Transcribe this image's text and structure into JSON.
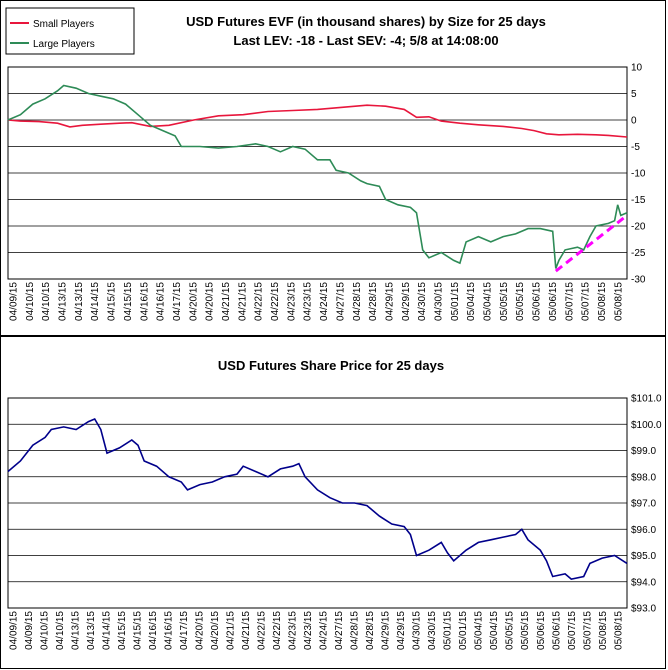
{
  "chart_data": [
    {
      "type": "line",
      "title": "USD Futures EVF (in thousand shares) by Size for 25 days",
      "subtitle": "Last LEV: -18 - Last SEV: -4; 5/8 at 14:08:00",
      "legend": {
        "placement": "top-left",
        "entries": [
          {
            "name": "Small Players",
            "color": "#e8163c"
          },
          {
            "name": "Large Players",
            "color": "#2e8b57"
          }
        ]
      },
      "ylim": [
        -30,
        10
      ],
      "yticks": [
        10,
        5,
        0,
        -5,
        -10,
        -15,
        -20,
        -25,
        -30
      ],
      "grid": true,
      "x_tick_labels": [
        "04/09/15",
        "04/10/15",
        "04/10/15",
        "04/13/15",
        "04/13/15",
        "04/14/15",
        "04/15/15",
        "04/15/15",
        "04/16/15",
        "04/16/15",
        "04/17/15",
        "04/20/15",
        "04/20/15",
        "04/21/15",
        "04/21/15",
        "04/22/15",
        "04/22/15",
        "04/23/15",
        "04/23/15",
        "04/24/15",
        "04/27/15",
        "04/28/15",
        "04/28/15",
        "04/29/15",
        "04/29/15",
        "04/30/15",
        "04/30/15",
        "05/01/15",
        "05/04/15",
        "05/04/15",
        "05/05/15",
        "05/05/15",
        "05/06/15",
        "05/06/15",
        "05/07/15",
        "05/07/15",
        "05/08/15",
        "05/08/15"
      ],
      "series": [
        {
          "name": "Small Players",
          "color": "#e8163c",
          "points": [
            [
              0,
              0
            ],
            [
              0.02,
              -0.2
            ],
            [
              0.05,
              -0.3
            ],
            [
              0.08,
              -0.6
            ],
            [
              0.1,
              -1.3
            ],
            [
              0.12,
              -1.0
            ],
            [
              0.15,
              -0.8
            ],
            [
              0.18,
              -0.6
            ],
            [
              0.2,
              -0.5
            ],
            [
              0.23,
              -1.2
            ],
            [
              0.26,
              -1.0
            ],
            [
              0.3,
              0
            ],
            [
              0.34,
              0.8
            ],
            [
              0.38,
              1.0
            ],
            [
              0.42,
              1.6
            ],
            [
              0.46,
              1.8
            ],
            [
              0.5,
              2.0
            ],
            [
              0.54,
              2.4
            ],
            [
              0.58,
              2.8
            ],
            [
              0.61,
              2.6
            ],
            [
              0.64,
              2.0
            ],
            [
              0.66,
              0.5
            ],
            [
              0.68,
              0.6
            ],
            [
              0.7,
              -0.2
            ],
            [
              0.73,
              -0.6
            ],
            [
              0.76,
              -0.9
            ],
            [
              0.8,
              -1.2
            ],
            [
              0.83,
              -1.6
            ],
            [
              0.85,
              -2.0
            ],
            [
              0.87,
              -2.6
            ],
            [
              0.89,
              -2.8
            ],
            [
              0.92,
              -2.7
            ],
            [
              0.95,
              -2.8
            ],
            [
              0.97,
              -2.9
            ],
            [
              1.0,
              -3.2
            ]
          ]
        },
        {
          "name": "Large Players",
          "color": "#2e8b57",
          "points": [
            [
              0,
              0
            ],
            [
              0.02,
              1.0
            ],
            [
              0.04,
              3.0
            ],
            [
              0.06,
              4.0
            ],
            [
              0.08,
              5.5
            ],
            [
              0.09,
              6.5
            ],
            [
              0.11,
              6.0
            ],
            [
              0.13,
              5.0
            ],
            [
              0.15,
              4.5
            ],
            [
              0.17,
              4.0
            ],
            [
              0.19,
              3.0
            ],
            [
              0.21,
              1.0
            ],
            [
              0.23,
              -1.0
            ],
            [
              0.25,
              -2.0
            ],
            [
              0.27,
              -3.0
            ],
            [
              0.28,
              -5.0
            ],
            [
              0.31,
              -5.0
            ],
            [
              0.34,
              -5.3
            ],
            [
              0.37,
              -5.0
            ],
            [
              0.4,
              -4.5
            ],
            [
              0.42,
              -5.0
            ],
            [
              0.44,
              -6.0
            ],
            [
              0.46,
              -5.0
            ],
            [
              0.48,
              -5.5
            ],
            [
              0.5,
              -7.5
            ],
            [
              0.52,
              -7.5
            ],
            [
              0.53,
              -9.5
            ],
            [
              0.55,
              -10.0
            ],
            [
              0.57,
              -11.5
            ],
            [
              0.58,
              -12.0
            ],
            [
              0.6,
              -12.5
            ],
            [
              0.61,
              -15.0
            ],
            [
              0.63,
              -16.0
            ],
            [
              0.65,
              -16.5
            ],
            [
              0.66,
              -17.5
            ],
            [
              0.67,
              -24.5
            ],
            [
              0.68,
              -26.0
            ],
            [
              0.7,
              -25.0
            ],
            [
              0.72,
              -26.5
            ],
            [
              0.73,
              -27.0
            ],
            [
              0.74,
              -23.0
            ],
            [
              0.76,
              -22.0
            ],
            [
              0.78,
              -23.0
            ],
            [
              0.8,
              -22.0
            ],
            [
              0.82,
              -21.5
            ],
            [
              0.84,
              -20.5
            ],
            [
              0.86,
              -20.5
            ],
            [
              0.88,
              -21.0
            ],
            [
              0.885,
              -28.0
            ],
            [
              0.89,
              -26.5
            ],
            [
              0.9,
              -24.5
            ],
            [
              0.92,
              -24.0
            ],
            [
              0.93,
              -24.5
            ],
            [
              0.94,
              -22.0
            ],
            [
              0.95,
              -20.0
            ],
            [
              0.97,
              -19.5
            ],
            [
              0.98,
              -19.0
            ],
            [
              0.985,
              -16.0
            ],
            [
              0.99,
              -18.0
            ],
            [
              1.0,
              -17.5
            ]
          ]
        }
      ],
      "trendline": {
        "color": "#ff00ff",
        "from": [
          0.885,
          -28.5
        ],
        "to": [
          1.0,
          -18.0
        ]
      }
    },
    {
      "type": "line",
      "title": "USD Futures Share Price for 25 days",
      "ylim": [
        93.0,
        101.0
      ],
      "ytick_labels": [
        "$101.0",
        "$100.0",
        "$99.0",
        "$98.0",
        "$97.0",
        "$96.0",
        "$95.0",
        "$94.0",
        "$93.0"
      ],
      "yticks": [
        101,
        100,
        99,
        98,
        97,
        96,
        95,
        94,
        93
      ],
      "grid": true,
      "x_tick_labels": [
        "04/09/15",
        "04/09/15",
        "04/10/15",
        "04/10/15",
        "04/13/15",
        "04/13/15",
        "04/14/15",
        "04/15/15",
        "04/15/15",
        "04/16/15",
        "04/16/15",
        "04/17/15",
        "04/20/15",
        "04/20/15",
        "04/21/15",
        "04/21/15",
        "04/22/15",
        "04/22/15",
        "04/23/15",
        "04/23/15",
        "04/24/15",
        "04/27/15",
        "04/28/15",
        "04/28/15",
        "04/29/15",
        "04/29/15",
        "04/30/15",
        "04/30/15",
        "05/01/15",
        "05/01/15",
        "05/04/15",
        "05/04/15",
        "05/05/15",
        "05/05/15",
        "05/06/15",
        "05/06/15",
        "05/07/15",
        "05/07/15",
        "05/08/15",
        "05/08/15"
      ],
      "series": [
        {
          "name": "",
          "color": "#00008b",
          "points": [
            [
              0,
              98.2
            ],
            [
              0.02,
              98.6
            ],
            [
              0.04,
              99.2
            ],
            [
              0.06,
              99.5
            ],
            [
              0.07,
              99.8
            ],
            [
              0.09,
              99.9
            ],
            [
              0.11,
              99.8
            ],
            [
              0.13,
              100.1
            ],
            [
              0.14,
              100.2
            ],
            [
              0.15,
              99.8
            ],
            [
              0.16,
              98.9
            ],
            [
              0.18,
              99.1
            ],
            [
              0.2,
              99.4
            ],
            [
              0.21,
              99.2
            ],
            [
              0.22,
              98.6
            ],
            [
              0.24,
              98.4
            ],
            [
              0.26,
              98.0
            ],
            [
              0.28,
              97.8
            ],
            [
              0.29,
              97.5
            ],
            [
              0.31,
              97.7
            ],
            [
              0.33,
              97.8
            ],
            [
              0.35,
              98.0
            ],
            [
              0.37,
              98.1
            ],
            [
              0.38,
              98.4
            ],
            [
              0.4,
              98.2
            ],
            [
              0.42,
              98.0
            ],
            [
              0.44,
              98.3
            ],
            [
              0.46,
              98.4
            ],
            [
              0.47,
              98.5
            ],
            [
              0.48,
              98.0
            ],
            [
              0.5,
              97.5
            ],
            [
              0.52,
              97.2
            ],
            [
              0.54,
              97.0
            ],
            [
              0.56,
              97.0
            ],
            [
              0.58,
              96.9
            ],
            [
              0.6,
              96.5
            ],
            [
              0.62,
              96.2
            ],
            [
              0.64,
              96.1
            ],
            [
              0.65,
              95.8
            ],
            [
              0.66,
              95.0
            ],
            [
              0.68,
              95.2
            ],
            [
              0.7,
              95.5
            ],
            [
              0.71,
              95.1
            ],
            [
              0.72,
              94.8
            ],
            [
              0.74,
              95.2
            ],
            [
              0.76,
              95.5
            ],
            [
              0.78,
              95.6
            ],
            [
              0.8,
              95.7
            ],
            [
              0.82,
              95.8
            ],
            [
              0.83,
              96.0
            ],
            [
              0.84,
              95.6
            ],
            [
              0.86,
              95.2
            ],
            [
              0.87,
              94.8
            ],
            [
              0.88,
              94.2
            ],
            [
              0.9,
              94.3
            ],
            [
              0.91,
              94.1
            ],
            [
              0.93,
              94.2
            ],
            [
              0.94,
              94.7
            ],
            [
              0.96,
              94.9
            ],
            [
              0.98,
              95.0
            ],
            [
              1.0,
              94.7
            ]
          ]
        }
      ]
    }
  ]
}
